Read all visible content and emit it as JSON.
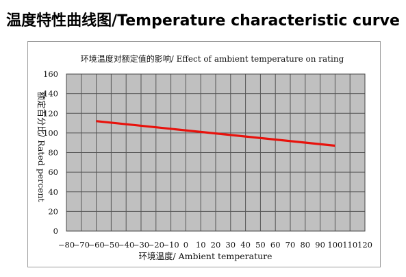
{
  "page": {
    "title": "温度特性曲线图/Temperature characteristic curve"
  },
  "chart_data": {
    "type": "line",
    "title": "环境温度对额定值的影响/ Effect of ambient temperature on rating",
    "xlabel": "环境温度/ Ambient temperature",
    "ylabel": "额定百分比/ Rated percent",
    "xlim": [
      -80,
      120
    ],
    "ylim": [
      0,
      160
    ],
    "x_ticks": [
      -80,
      -70,
      -60,
      -50,
      -40,
      -30,
      -20,
      -10,
      0,
      10,
      20,
      30,
      40,
      50,
      60,
      70,
      80,
      90,
      100,
      110,
      120
    ],
    "y_ticks": [
      0,
      20,
      40,
      60,
      80,
      100,
      120,
      140,
      160
    ],
    "grid": true,
    "plot_background": "#c0c0c0",
    "grid_color": "#555555",
    "series": [
      {
        "color": "#e8120c",
        "x": [
          -60,
          100
        ],
        "y": [
          112,
          87
        ]
      }
    ]
  }
}
